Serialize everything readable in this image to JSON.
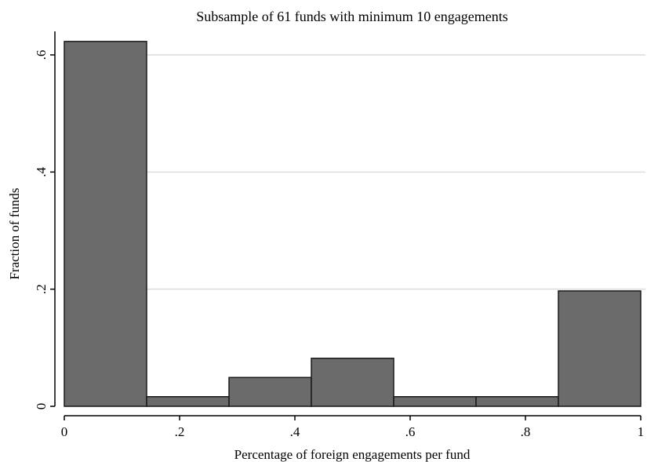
{
  "chart_data": {
    "type": "bar",
    "title": "Subsample of 61 funds with minimum 10 engagements",
    "xlabel": "Percentage of foreign engagements per fund",
    "ylabel": "Fraction of funds",
    "bins": [
      {
        "start": 0.0,
        "end": 0.142857,
        "value": 0.623
      },
      {
        "start": 0.142857,
        "end": 0.285714,
        "value": 0.0164
      },
      {
        "start": 0.285714,
        "end": 0.428571,
        "value": 0.0492
      },
      {
        "start": 0.428571,
        "end": 0.571429,
        "value": 0.082
      },
      {
        "start": 0.571429,
        "end": 0.714286,
        "value": 0.0164
      },
      {
        "start": 0.714286,
        "end": 0.857143,
        "value": 0.0164
      },
      {
        "start": 0.857143,
        "end": 1.0,
        "value": 0.197
      }
    ],
    "xlim": [
      0,
      1
    ],
    "ylim": [
      0,
      0.64
    ],
    "x_ticks": [
      {
        "value": 0,
        "label": "0"
      },
      {
        "value": 0.2,
        "label": ".2"
      },
      {
        "value": 0.4,
        "label": ".4"
      },
      {
        "value": 0.6,
        "label": ".6"
      },
      {
        "value": 0.8,
        "label": ".8"
      },
      {
        "value": 1,
        "label": "1"
      }
    ],
    "y_ticks": [
      {
        "value": 0,
        "label": "0"
      },
      {
        "value": 0.2,
        "label": ".2"
      },
      {
        "value": 0.4,
        "label": ".4"
      },
      {
        "value": 0.6,
        "label": ".6"
      }
    ],
    "grid": true,
    "colors": {
      "bar_fill": "#6b6b6b",
      "bar_stroke": "#1a1a1a",
      "grid": "#dcdcdc",
      "axis": "#000000"
    }
  }
}
